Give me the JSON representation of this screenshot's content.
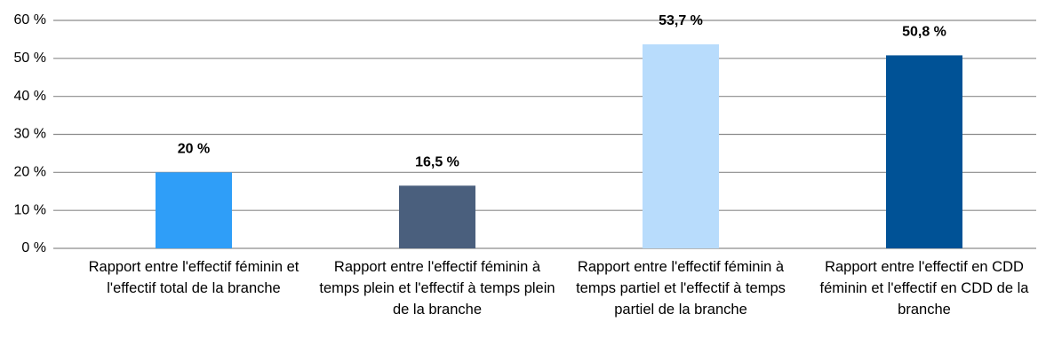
{
  "chart_data": {
    "type": "bar",
    "categories": [
      "Rapport entre l'effectif féminin et l'effectif total de la branche",
      "Rapport entre l'effectif féminin à temps plein et l'effectif à temps plein de la branche",
      "Rapport entre l'effectif féminin à temps partiel et l'effectif à temps partiel de la branche",
      "Rapport entre l'effectif en CDD féminin et l'effectif en CDD de la branche"
    ],
    "values": [
      20,
      16.5,
      53.7,
      50.8
    ],
    "value_labels": [
      "20 %",
      "16,5 %",
      "53,7 %",
      "50,8 %"
    ],
    "colors": [
      "#2f9ef8",
      "#4a5f7d",
      "#b8dcfc",
      "#005296"
    ],
    "ylim": [
      0,
      60
    ],
    "yticks": [
      {
        "value": 0,
        "label": "0 %"
      },
      {
        "value": 10,
        "label": "10 %"
      },
      {
        "value": 20,
        "label": "20 %"
      },
      {
        "value": 30,
        "label": "30 %"
      },
      {
        "value": 40,
        "label": "40 %"
      },
      {
        "value": 50,
        "label": "50 %"
      },
      {
        "value": 60,
        "label": "60 %"
      }
    ],
    "grid": true
  }
}
